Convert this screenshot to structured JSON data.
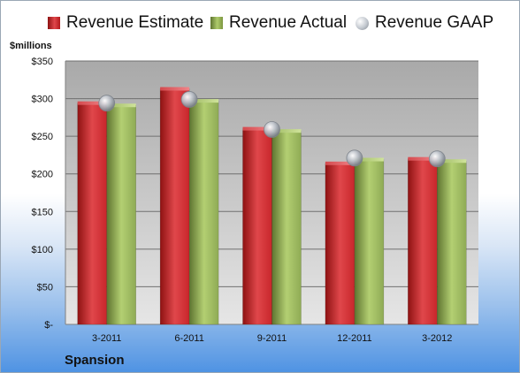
{
  "legend": {
    "estimate": "Revenue Estimate",
    "actual": "Revenue Actual",
    "gaap": "Revenue GAAP"
  },
  "unit_label": "$millions",
  "company": "Spansion",
  "colors": {
    "estimate": "#c8262b",
    "actual": "#8fab55",
    "gaap": "#b9bec6",
    "plot_background_top": "#a9a9a9",
    "plot_background_bottom": "#e6e6e6",
    "gridline": "#707070"
  },
  "chart_data": {
    "type": "bar",
    "categories": [
      "3-2011",
      "6-2011",
      "9-2011",
      "12-2011",
      "3-2012"
    ],
    "series": [
      {
        "name": "Revenue Estimate",
        "values": [
          294,
          313,
          260,
          214,
          220
        ]
      },
      {
        "name": "Revenue Actual",
        "values": [
          291,
          297,
          257,
          219,
          217
        ]
      },
      {
        "name": "Revenue GAAP",
        "marker": "circle",
        "values": [
          294,
          299,
          259,
          221,
          220
        ]
      }
    ],
    "ylim": [
      0,
      350
    ],
    "yticks": [
      0,
      50,
      100,
      150,
      200,
      250,
      300,
      350
    ],
    "ytick_labels": [
      "$-",
      "$50",
      "$100",
      "$150",
      "$200",
      "$250",
      "$300",
      "$350"
    ],
    "ylabel": "$millions",
    "xlabel": "Spansion",
    "grid": true,
    "legend_position": "top"
  }
}
